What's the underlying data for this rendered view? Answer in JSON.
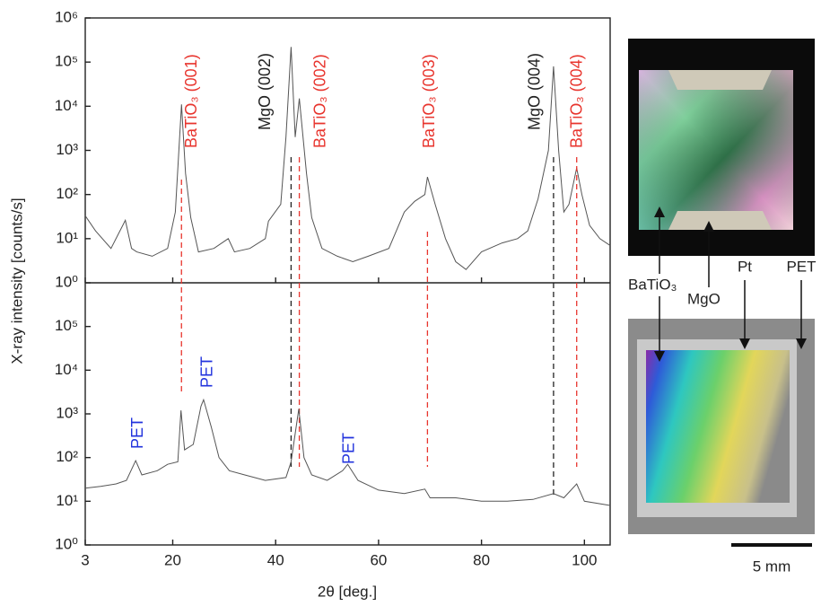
{
  "chart_data": [
    {
      "type": "line",
      "log_y": true,
      "xlim": [
        3,
        105
      ],
      "ylim": [
        1,
        1000000
      ],
      "yticks": [
        {
          "value": 1,
          "label": "10⁰"
        },
        {
          "value": 10,
          "label": "10¹"
        },
        {
          "value": 100,
          "label": "10²"
        },
        {
          "value": 1000,
          "label": "10³"
        },
        {
          "value": 10000,
          "label": "10⁴"
        },
        {
          "value": 100000,
          "label": "10⁵"
        },
        {
          "value": 1000000,
          "label": "10⁶"
        }
      ],
      "x": [
        3,
        5,
        8,
        10.8,
        12,
        13,
        16,
        19,
        20.5,
        21.7,
        22.5,
        23.5,
        25,
        28,
        30.8,
        32,
        35,
        38,
        38.6,
        41,
        42,
        43,
        43.8,
        44.6,
        46,
        47,
        49,
        52,
        55,
        58,
        62,
        65,
        67,
        69,
        69.5,
        71,
        73,
        75,
        77,
        80,
        84,
        87,
        89,
        91,
        93,
        94,
        95,
        96,
        97,
        98.5,
        99.5,
        101,
        103,
        105
      ],
      "series": [
        {
          "color": "#555555",
          "values": [
            33,
            15,
            6,
            26,
            6,
            5,
            4,
            6,
            40,
            11000,
            300,
            30,
            5,
            6,
            10,
            5,
            6,
            10,
            25,
            60,
            2000,
            220000,
            2000,
            15000,
            300,
            30,
            6,
            4,
            3,
            4,
            6,
            40,
            70,
            100,
            250,
            60,
            10,
            3,
            2,
            5,
            8,
            10,
            15,
            80,
            1000,
            80000,
            1000,
            40,
            60,
            400,
            100,
            20,
            10,
            7
          ]
        }
      ],
      "annotations": [
        {
          "text": "BaTiO₃ (001)",
          "x": 21.7,
          "color": "#e8352e"
        },
        {
          "text": "MgO (002)",
          "x": 43,
          "color": "#222222"
        },
        {
          "text": "BaTiO₃ (002)",
          "x": 44.6,
          "color": "#e8352e"
        },
        {
          "text": "BaTiO₃ (003)",
          "x": 69.5,
          "color": "#e8352e"
        },
        {
          "text": "MgO (004)",
          "x": 94,
          "color": "#222222"
        },
        {
          "text": "BaTiO₃ (004)",
          "x": 98.5,
          "color": "#e8352e"
        }
      ]
    },
    {
      "type": "line",
      "log_y": true,
      "xlim": [
        3,
        105
      ],
      "ylim": [
        1,
        1000000
      ],
      "xticks": [
        3,
        20,
        40,
        60,
        80,
        100
      ],
      "xlabel": "2θ [deg.]",
      "ylabel": "X-ray intensity [counts/s]",
      "yticks": [
        {
          "value": 1,
          "label": "10⁰"
        },
        {
          "value": 10,
          "label": "10¹"
        },
        {
          "value": 100,
          "label": "10²"
        },
        {
          "value": 1000,
          "label": "10³"
        },
        {
          "value": 10000,
          "label": "10⁴"
        },
        {
          "value": 100000,
          "label": "10⁵"
        }
      ],
      "x": [
        3,
        6,
        9,
        11,
        12.8,
        14,
        17,
        19,
        21,
        21.6,
        22.3,
        24,
        25.5,
        26,
        27.5,
        29,
        31,
        34,
        38,
        42,
        43,
        44.5,
        45.5,
        47,
        50,
        53,
        54,
        56,
        60,
        65,
        69,
        70,
        75,
        80,
        85,
        90,
        94,
        96,
        98.5,
        100,
        105
      ],
      "series": [
        {
          "color": "#555555",
          "values": [
            20,
            22,
            25,
            30,
            85,
            40,
            50,
            70,
            80,
            1200,
            150,
            200,
            1500,
            2100,
            500,
            100,
            50,
            40,
            30,
            35,
            80,
            1300,
            100,
            40,
            30,
            50,
            70,
            30,
            18,
            15,
            19,
            12,
            12,
            10,
            10,
            11,
            15,
            12,
            25,
            10,
            8
          ]
        }
      ],
      "annotations": [
        {
          "text": "PET",
          "x": 12.8,
          "color": "#2233dd"
        },
        {
          "text": "PET",
          "x": 25.8,
          "color": "#2233dd"
        },
        {
          "text": "PET",
          "x": 54,
          "color": "#2233dd"
        }
      ]
    }
  ],
  "photo": {
    "labels": [
      "BaTiO₃",
      "MgO",
      "Pt",
      "PET"
    ],
    "scale_bar": "5 mm"
  }
}
